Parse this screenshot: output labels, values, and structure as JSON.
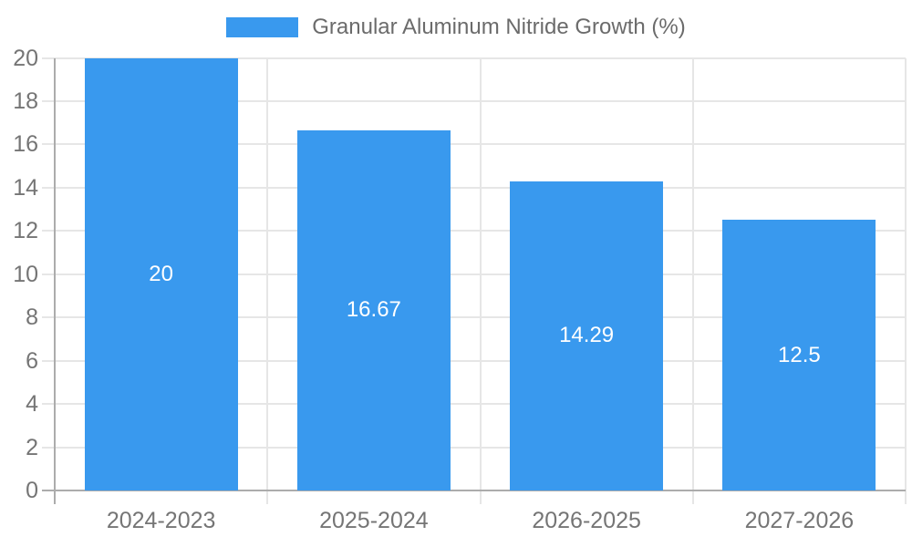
{
  "chart_data": {
    "type": "bar",
    "title": "",
    "legend": {
      "label": "Granular Aluminum Nitride Growth (%)",
      "position": "top"
    },
    "categories": [
      "2024-2023",
      "2025-2024",
      "2026-2025",
      "2027-2026"
    ],
    "series": [
      {
        "name": "Granular Aluminum Nitride Growth (%)",
        "values": [
          20,
          16.67,
          14.29,
          12.5
        ],
        "value_labels": [
          "20",
          "16.67",
          "14.29",
          "12.5"
        ]
      }
    ],
    "xlabel": "",
    "ylabel": "",
    "ylim": [
      0,
      20
    ],
    "ytick_step": 2,
    "grid": true,
    "bar_percentage": 0.72,
    "colors": {
      "bar": "#3999ee",
      "grid": "#e6e6e6",
      "axis_border": "#acacac",
      "tick_text": "#757575",
      "bar_label_text": "#ffffff",
      "legend_text": "#6b6b6b",
      "background": "#ffffff"
    }
  }
}
